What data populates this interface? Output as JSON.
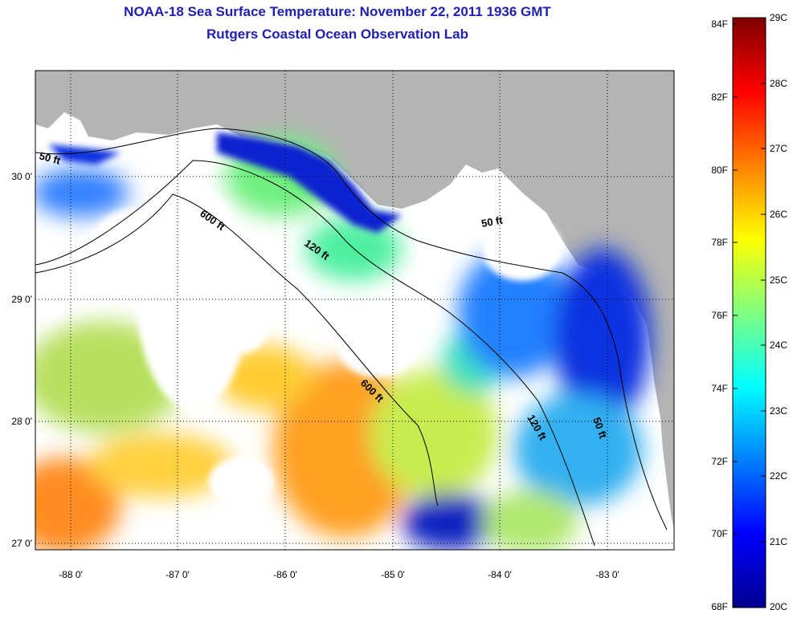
{
  "title": "NOAA-18 Sea Surface Temperature:  November 22, 2011 1936 GMT",
  "subtitle": "Rutgers Coastal Ocean Observation Lab",
  "map": {
    "lon_ticks": [
      "-88 0'",
      "-87 0'",
      "-86 0'",
      "-85 0'",
      "-84 0'",
      "-83 0'"
    ],
    "lat_ticks": [
      "30 0'",
      "29 0'",
      "28 0'",
      "27 0'"
    ],
    "land_color": "#b4b4b4",
    "cloud_color": "#ffffff",
    "contour_labels": [
      "50 ft",
      "600 ft",
      "120 ft",
      "50 ft",
      "600 ft",
      "120 ft",
      "50 ft"
    ]
  },
  "colorbar": {
    "fahrenheit_labels": [
      "84F",
      "82F",
      "80F",
      "78F",
      "76F",
      "74F",
      "72F",
      "70F",
      "68F"
    ],
    "celsius_labels": [
      "29C",
      "28C",
      "27C",
      "26C",
      "25C",
      "24C",
      "23C",
      "22C",
      "21C",
      "20C"
    ],
    "range_c": [
      20,
      29
    ],
    "colors": [
      "#00008f",
      "#0000ff",
      "#007fff",
      "#00ffff",
      "#7fff7f",
      "#ffff00",
      "#ff7f00",
      "#ff0000",
      "#7f0000"
    ]
  }
}
